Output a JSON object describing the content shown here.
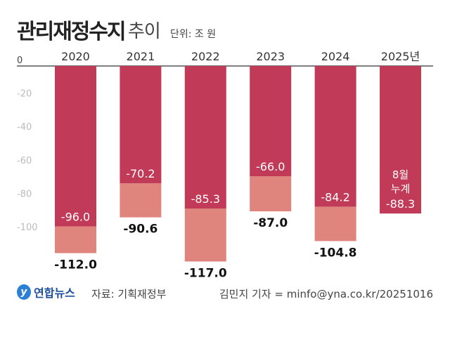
{
  "chart_data": {
    "type": "bar",
    "title": "관리재정수지",
    "title_suffix": "추이",
    "unit": "단위: 조 원",
    "categories": [
      "2020",
      "2021",
      "2022",
      "2023",
      "2024",
      "2025년"
    ],
    "series": [
      {
        "values": [
          -96.0,
          -70.2,
          -85.3,
          -66.0,
          -84.2,
          -88.3
        ],
        "labels": [
          "-96.0",
          "-70.2",
          "-85.3",
          "-66.0",
          "-84.2",
          "-88.3"
        ]
      },
      {
        "values": [
          -112.0,
          -90.6,
          -117.0,
          -87.0,
          -104.8,
          null
        ],
        "labels": [
          "-112.0",
          "-90.6",
          "-117.0",
          "-87.0",
          "-104.8",
          ""
        ]
      }
    ],
    "annotation_2025": [
      "8월",
      "누계"
    ],
    "yticks": [
      0,
      -20,
      -40,
      -60,
      -80,
      -100
    ],
    "ytick_labels": [
      "0",
      "-20",
      "-40",
      "-60",
      "-80",
      "-100"
    ],
    "ylim": [
      -120,
      0
    ],
    "colors": {
      "primary": "#c13a58",
      "secondary": "#e0857e",
      "tick": "#bbbbbb"
    }
  },
  "footer": {
    "logo_text": "연합뉴스",
    "source": "자료: 기획재정부",
    "credit": "김민지 기자 = minfo@yna.co.kr/20251016"
  }
}
